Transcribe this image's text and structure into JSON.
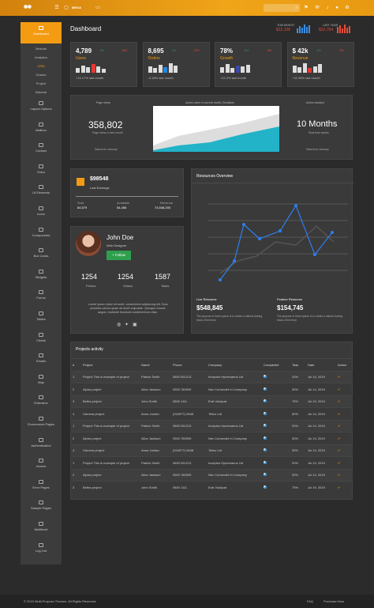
{
  "topbar": {
    "logo": "",
    "mega": "MEGA",
    "search_icon": "⌕"
  },
  "header": {
    "title": "Dashboard",
    "this_month_label": "THIS MONTH",
    "this_month_value": "$12,126",
    "last_year_label": "LAST YEAR",
    "last_year_value": "$22,754"
  },
  "sidebar": {
    "dashboard": "Dashboard",
    "sub": [
      "Minimal",
      "Analytics",
      "CRM",
      "Classic",
      "Project",
      "Material"
    ],
    "items": [
      "Layout Options",
      "Mailbox",
      "Contact",
      "Extra",
      "UI Elements",
      "Icons",
      "Components",
      "Box Cards",
      "Widgets",
      "Forms",
      "Tables",
      "Charts",
      "Emails",
      "Map",
      "Extension",
      "Ecommerce Pages",
      "Authentication",
      "Invoice",
      "Error Pages",
      "Sample Pages",
      "Multilevel",
      "Log Out"
    ]
  },
  "stats": [
    {
      "value": "4,789",
      "label": "Users",
      "foot": "+14.17% last month",
      "up": "6%",
      "down": "15%",
      "accent": "#e53935"
    },
    {
      "value": "8,695",
      "label": "Orders",
      "foot": "-3.18% last month",
      "up": "4%",
      "down": "12%",
      "accent": "#1e88e5"
    },
    {
      "value": "78%",
      "label": "Growth",
      "foot": "+12.2% last month",
      "up": "8%",
      "down": "6%",
      "accent": "#3949ab"
    },
    {
      "value": "$ 42k",
      "label": "Revenue",
      "foot": "+11.96% last month",
      "up": "5%",
      "down": "3%",
      "accent": "#e53935"
    }
  ],
  "overview": {
    "page_views_label": "Page views",
    "page_views": "358,802",
    "page_views_sub": "Page views in last month",
    "page_views_foot": "Data from January",
    "chart_title": "Active users in current month (Serialise)",
    "duration_label": "Active duration",
    "duration": "10 Months",
    "duration_sub": "Real time weeks",
    "duration_foot": "Data from January"
  },
  "earnings": {
    "amount": "$98548",
    "label": "Last Earnings",
    "cols": [
      {
        "k": "Sold",
        "v": "84,579"
      },
      {
        "k": "Available",
        "v": "54,456"
      },
      {
        "k": "Revenue",
        "v": "74,548,200"
      }
    ]
  },
  "profile": {
    "name": "John Doe",
    "role": "Web Designer",
    "follow": "+ Follow",
    "photos": "1254",
    "videos": "1254",
    "tasks": "1587",
    "photos_l": "Photos",
    "videos_l": "Videos",
    "tasks_l": "Tasks",
    "bio": "Lorem ipsum dolor sit amet, consectetur adipiscing elit. Duis pharetra varius quam sit amet vulputate. Quisque mauris augue, molestie tincidunt condimentum vitae."
  },
  "resources": {
    "title": "Resources Overview",
    "live_label": "Live Resource",
    "live_value": "$548,845",
    "live_desc": "The purpose of lorem ipsum is to create a natural looking block of text from",
    "feat_label": "Feature Resource",
    "feat_value": "$154,745",
    "feat_desc": "The purpose of lorem ipsum is to create a natural looking block of text from"
  },
  "projects": {
    "title": "Projects activity",
    "headers": [
      "#",
      "Project",
      "Name",
      "Phone",
      "Company",
      "Completed",
      "Task",
      "Date",
      "Action"
    ],
    "rows": [
      [
        "1",
        "Project This is example of project",
        "Patrick Smith",
        "0800 051213",
        "Inceptos Hymenaeos Ltd",
        "",
        "20%",
        "Jul 14, 2019"
      ],
      [
        "2",
        "Alpha project",
        "Alice Jackson",
        "0500 780909",
        "Nec Consectet In Company",
        "",
        "30%",
        "Jul 14, 2019"
      ],
      [
        "3",
        "Betha project",
        "John Smith",
        "0800 1111",
        "Erat Volutpat",
        "",
        "75%",
        "Jul 19, 2019"
      ],
      [
        "4",
        "Gamma project",
        "Anna Jordan",
        "(016977) 0648",
        "Tellus Ltd",
        "",
        "60%",
        "Jul 14, 2019"
      ],
      [
        "1",
        "Project This is example of project",
        "Patrick Smith",
        "0800 051213",
        "Inceptos Hymenaeos Ltd",
        "",
        "20%",
        "Jul 14, 2019"
      ],
      [
        "2",
        "Alpha project",
        "Alice Jackson",
        "0500 780909",
        "Nec Consectet In Company",
        "",
        "30%",
        "Jul 14, 2019"
      ],
      [
        "4",
        "Gamma project",
        "Anna Jordan",
        "(016977) 0648",
        "Tellus Ltd",
        "",
        "30%",
        "Jul 14, 2019"
      ],
      [
        "1",
        "Project This is example of project",
        "Patrick Smith",
        "0800 051213",
        "Inceptos Hymenaeos Ltd",
        "",
        "20%",
        "Jul 14, 2019"
      ],
      [
        "2",
        "Alpha project",
        "Alice Jackson",
        "0500 780909",
        "Nec Consectet In Company",
        "",
        "30%",
        "Jul 14, 2019"
      ],
      [
        "3",
        "Betha project",
        "John Smith",
        "0800 1111",
        "Erat Volutpat",
        "",
        "75%",
        "Jul 19, 2019"
      ]
    ]
  },
  "footer": {
    "copyright": "© 2019 Multi-Purpose Themes. All Rights Reserved.",
    "faq": "FAQ",
    "purchase": "Purchase Now"
  }
}
